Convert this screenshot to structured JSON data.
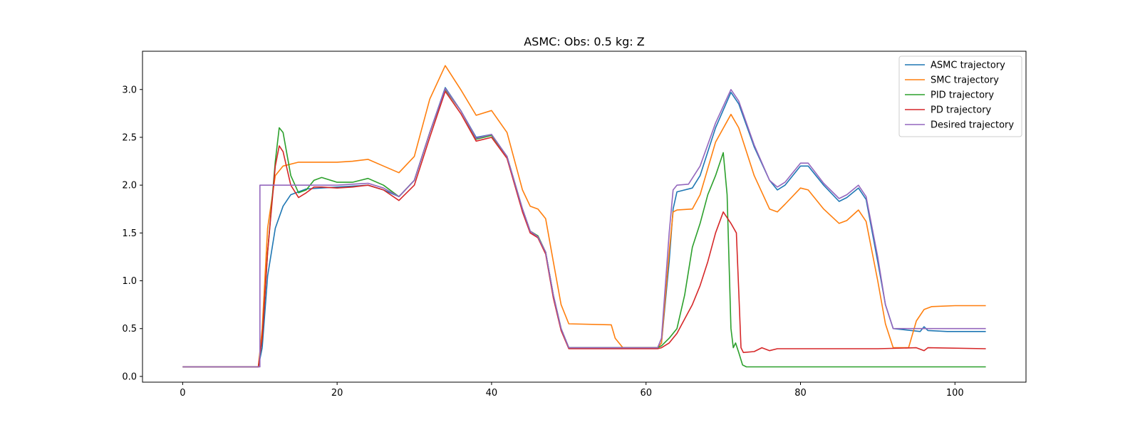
{
  "chart_data": {
    "type": "line",
    "title": "ASMC: Obs: 0.5 kg: Z",
    "xlabel": "",
    "ylabel": "",
    "xlim": [
      -5.2,
      109.2
    ],
    "ylim": [
      -0.06,
      3.4
    ],
    "xticks": [
      0,
      20,
      40,
      60,
      80,
      100
    ],
    "yticks": [
      0.0,
      0.5,
      1.0,
      1.5,
      2.0,
      2.5,
      3.0
    ],
    "xtick_labels": [
      "0",
      "20",
      "40",
      "60",
      "80",
      "100"
    ],
    "ytick_labels": [
      "0.0",
      "0.5",
      "1.0",
      "1.5",
      "2.0",
      "2.5",
      "3.0"
    ],
    "grid": false,
    "legend_position": "top-right",
    "series": [
      {
        "name": "ASMC trajectory",
        "color": "#1f77b4",
        "points": [
          [
            0,
            0.1
          ],
          [
            9.8,
            0.1
          ],
          [
            10.3,
            0.3
          ],
          [
            11,
            1.05
          ],
          [
            12,
            1.55
          ],
          [
            13,
            1.78
          ],
          [
            14,
            1.9
          ],
          [
            16,
            1.96
          ],
          [
            20,
            1.98
          ],
          [
            24,
            2.0
          ],
          [
            26,
            1.95
          ],
          [
            28,
            1.88
          ],
          [
            30,
            2.05
          ],
          [
            32,
            2.55
          ],
          [
            34,
            3.02
          ],
          [
            36,
            2.78
          ],
          [
            38,
            2.5
          ],
          [
            40,
            2.53
          ],
          [
            42,
            2.3
          ],
          [
            44,
            1.75
          ],
          [
            45,
            1.52
          ],
          [
            46,
            1.45
          ],
          [
            47,
            1.3
          ],
          [
            48,
            0.85
          ],
          [
            49,
            0.5
          ],
          [
            50,
            0.3
          ],
          [
            61.5,
            0.3
          ],
          [
            62,
            0.35
          ],
          [
            63,
            1.2
          ],
          [
            63.5,
            1.75
          ],
          [
            64,
            1.93
          ],
          [
            66,
            1.97
          ],
          [
            67,
            2.1
          ],
          [
            69,
            2.6
          ],
          [
            71,
            2.97
          ],
          [
            72,
            2.85
          ],
          [
            74,
            2.4
          ],
          [
            76,
            2.05
          ],
          [
            77,
            1.95
          ],
          [
            78,
            2.0
          ],
          [
            80,
            2.2
          ],
          [
            81,
            2.2
          ],
          [
            83,
            2.0
          ],
          [
            85,
            1.83
          ],
          [
            86,
            1.87
          ],
          [
            87.5,
            1.97
          ],
          [
            88.5,
            1.85
          ],
          [
            90,
            1.2
          ],
          [
            91,
            0.75
          ],
          [
            92,
            0.5
          ],
          [
            95.5,
            0.47
          ],
          [
            96,
            0.52
          ],
          [
            96.5,
            0.48
          ],
          [
            99,
            0.47
          ],
          [
            104,
            0.47
          ]
        ]
      },
      {
        "name": "SMC trajectory",
        "color": "#ff7f0e",
        "points": [
          [
            0,
            0.1
          ],
          [
            9.8,
            0.1
          ],
          [
            10.3,
            0.5
          ],
          [
            11,
            1.55
          ],
          [
            12,
            2.1
          ],
          [
            13,
            2.2
          ],
          [
            15,
            2.24
          ],
          [
            20,
            2.24
          ],
          [
            22,
            2.25
          ],
          [
            24,
            2.27
          ],
          [
            26,
            2.2
          ],
          [
            28,
            2.13
          ],
          [
            30,
            2.3
          ],
          [
            32,
            2.9
          ],
          [
            34,
            3.25
          ],
          [
            36,
            3.0
          ],
          [
            38,
            2.73
          ],
          [
            40,
            2.78
          ],
          [
            42,
            2.55
          ],
          [
            44,
            1.95
          ],
          [
            45,
            1.78
          ],
          [
            46,
            1.75
          ],
          [
            47,
            1.65
          ],
          [
            48,
            1.2
          ],
          [
            49,
            0.75
          ],
          [
            50,
            0.55
          ],
          [
            55.5,
            0.54
          ],
          [
            56,
            0.4
          ],
          [
            57,
            0.3
          ],
          [
            61.5,
            0.3
          ],
          [
            62,
            0.35
          ],
          [
            63,
            1.3
          ],
          [
            63.5,
            1.72
          ],
          [
            64,
            1.74
          ],
          [
            66,
            1.75
          ],
          [
            67,
            1.9
          ],
          [
            69,
            2.45
          ],
          [
            71,
            2.74
          ],
          [
            72,
            2.6
          ],
          [
            74,
            2.1
          ],
          [
            76,
            1.75
          ],
          [
            77,
            1.72
          ],
          [
            78,
            1.8
          ],
          [
            80,
            1.97
          ],
          [
            81,
            1.95
          ],
          [
            83,
            1.75
          ],
          [
            85,
            1.6
          ],
          [
            86,
            1.63
          ],
          [
            87.5,
            1.74
          ],
          [
            88.5,
            1.62
          ],
          [
            90,
            1.0
          ],
          [
            91,
            0.55
          ],
          [
            92,
            0.3
          ],
          [
            94,
            0.3
          ],
          [
            95,
            0.58
          ],
          [
            96,
            0.7
          ],
          [
            97,
            0.73
          ],
          [
            100,
            0.74
          ],
          [
            104,
            0.74
          ]
        ]
      },
      {
        "name": "PID trajectory",
        "color": "#2ca02c",
        "points": [
          [
            0,
            0.1
          ],
          [
            9.8,
            0.1
          ],
          [
            10.3,
            0.4
          ],
          [
            11,
            1.3
          ],
          [
            12,
            2.25
          ],
          [
            12.5,
            2.6
          ],
          [
            13,
            2.55
          ],
          [
            14,
            2.1
          ],
          [
            15,
            1.92
          ],
          [
            16,
            1.95
          ],
          [
            17,
            2.05
          ],
          [
            18,
            2.08
          ],
          [
            20,
            2.03
          ],
          [
            22,
            2.03
          ],
          [
            24,
            2.07
          ],
          [
            26,
            2.0
          ],
          [
            28,
            1.88
          ],
          [
            30,
            2.05
          ],
          [
            32,
            2.55
          ],
          [
            34,
            3.0
          ],
          [
            36,
            2.78
          ],
          [
            38,
            2.48
          ],
          [
            40,
            2.52
          ],
          [
            42,
            2.3
          ],
          [
            44,
            1.75
          ],
          [
            45,
            1.52
          ],
          [
            46,
            1.47
          ],
          [
            47,
            1.3
          ],
          [
            48,
            0.85
          ],
          [
            49,
            0.5
          ],
          [
            50,
            0.3
          ],
          [
            61.5,
            0.3
          ],
          [
            62,
            0.32
          ],
          [
            63,
            0.4
          ],
          [
            64,
            0.5
          ],
          [
            65,
            0.85
          ],
          [
            66,
            1.35
          ],
          [
            67,
            1.6
          ],
          [
            68,
            1.9
          ],
          [
            69,
            2.1
          ],
          [
            70,
            2.34
          ],
          [
            70.5,
            1.9
          ],
          [
            71,
            0.5
          ],
          [
            71.3,
            0.3
          ],
          [
            71.6,
            0.35
          ],
          [
            72,
            0.25
          ],
          [
            72.5,
            0.12
          ],
          [
            73,
            0.1
          ],
          [
            104,
            0.1
          ]
        ]
      },
      {
        "name": "PD trajectory",
        "color": "#d62728",
        "points": [
          [
            0,
            0.1
          ],
          [
            9.8,
            0.1
          ],
          [
            10.3,
            0.4
          ],
          [
            11,
            1.3
          ],
          [
            12,
            2.2
          ],
          [
            12.5,
            2.41
          ],
          [
            13,
            2.35
          ],
          [
            14,
            2.0
          ],
          [
            15,
            1.87
          ],
          [
            16,
            1.92
          ],
          [
            17,
            1.98
          ],
          [
            18,
            1.98
          ],
          [
            20,
            1.97
          ],
          [
            22,
            1.98
          ],
          [
            24,
            2.0
          ],
          [
            26,
            1.95
          ],
          [
            28,
            1.84
          ],
          [
            30,
            2.0
          ],
          [
            32,
            2.5
          ],
          [
            34,
            2.98
          ],
          [
            36,
            2.75
          ],
          [
            38,
            2.46
          ],
          [
            40,
            2.5
          ],
          [
            42,
            2.28
          ],
          [
            44,
            1.72
          ],
          [
            45,
            1.5
          ],
          [
            46,
            1.45
          ],
          [
            47,
            1.28
          ],
          [
            48,
            0.82
          ],
          [
            49,
            0.48
          ],
          [
            50,
            0.29
          ],
          [
            61.5,
            0.29
          ],
          [
            62,
            0.3
          ],
          [
            63,
            0.35
          ],
          [
            64,
            0.45
          ],
          [
            65,
            0.6
          ],
          [
            66,
            0.75
          ],
          [
            67,
            0.95
          ],
          [
            68,
            1.2
          ],
          [
            69,
            1.5
          ],
          [
            70,
            1.72
          ],
          [
            71,
            1.6
          ],
          [
            71.7,
            1.5
          ],
          [
            72,
            0.9
          ],
          [
            72.3,
            0.3
          ],
          [
            72.6,
            0.25
          ],
          [
            74,
            0.26
          ],
          [
            75,
            0.3
          ],
          [
            76,
            0.27
          ],
          [
            77,
            0.29
          ],
          [
            80,
            0.29
          ],
          [
            90,
            0.29
          ],
          [
            95,
            0.3
          ],
          [
            96,
            0.27
          ],
          [
            96.5,
            0.3
          ],
          [
            104,
            0.29
          ]
        ]
      },
      {
        "name": "Desired trajectory",
        "color": "#9467bd",
        "points": [
          [
            0,
            0.1
          ],
          [
            10,
            0.1
          ],
          [
            10,
            2.0
          ],
          [
            20,
            2.0
          ],
          [
            24,
            2.02
          ],
          [
            26,
            1.97
          ],
          [
            28,
            1.88
          ],
          [
            30,
            2.05
          ],
          [
            32,
            2.55
          ],
          [
            34,
            3.01
          ],
          [
            36,
            2.78
          ],
          [
            38,
            2.49
          ],
          [
            40,
            2.53
          ],
          [
            42,
            2.3
          ],
          [
            44,
            1.75
          ],
          [
            45,
            1.52
          ],
          [
            46,
            1.46
          ],
          [
            47,
            1.3
          ],
          [
            48,
            0.85
          ],
          [
            49,
            0.5
          ],
          [
            50,
            0.3
          ],
          [
            61.5,
            0.3
          ],
          [
            62,
            0.4
          ],
          [
            63,
            1.5
          ],
          [
            63.5,
            1.95
          ],
          [
            64,
            2.0
          ],
          [
            65.5,
            2.01
          ],
          [
            67,
            2.2
          ],
          [
            69,
            2.65
          ],
          [
            71,
            3.0
          ],
          [
            72,
            2.88
          ],
          [
            74,
            2.42
          ],
          [
            76,
            2.05
          ],
          [
            77,
            1.98
          ],
          [
            78,
            2.03
          ],
          [
            80,
            2.23
          ],
          [
            81,
            2.23
          ],
          [
            83,
            2.02
          ],
          [
            85,
            1.86
          ],
          [
            86,
            1.9
          ],
          [
            87.5,
            2.0
          ],
          [
            88.5,
            1.88
          ],
          [
            90,
            1.25
          ],
          [
            91,
            0.75
          ],
          [
            92,
            0.5
          ],
          [
            104,
            0.5
          ]
        ]
      }
    ]
  }
}
